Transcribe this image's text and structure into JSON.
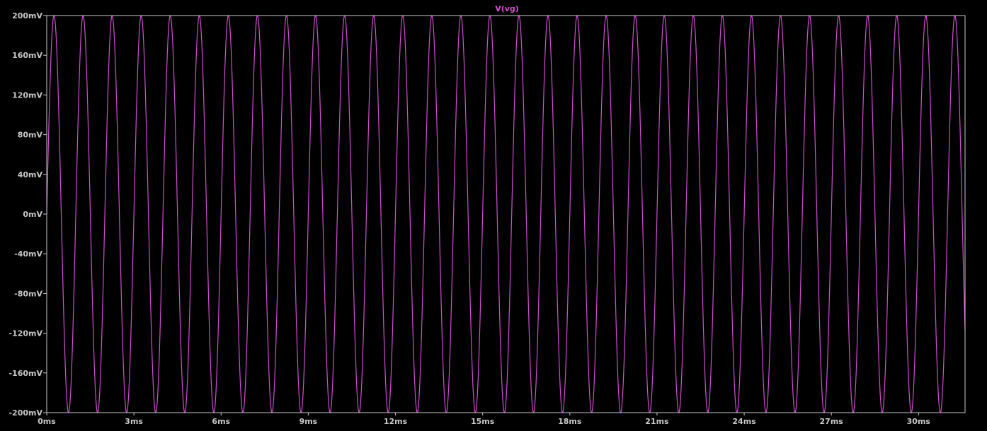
{
  "window": {
    "background": "#000000",
    "frame_color": "#c8c8c8",
    "label_color": "#c8c8c8"
  },
  "chart_data": {
    "type": "line",
    "title": "V(vg)",
    "xlabel": "",
    "ylabel": "",
    "x_unit": "ms",
    "y_unit": "mV",
    "xlim": [
      0,
      31.6
    ],
    "ylim": [
      -200,
      200
    ],
    "x_ticks": [
      0,
      3,
      6,
      9,
      12,
      15,
      18,
      21,
      24,
      27,
      30
    ],
    "x_tick_labels": [
      "0ms",
      "3ms",
      "6ms",
      "9ms",
      "12ms",
      "15ms",
      "18ms",
      "21ms",
      "24ms",
      "27ms",
      "30ms"
    ],
    "y_ticks": [
      200,
      160,
      120,
      80,
      40,
      0,
      -40,
      -80,
      -120,
      -160,
      -200
    ],
    "y_tick_labels": [
      "200mV",
      "160mV",
      "120mV",
      "80mV",
      "40mV",
      "0mV",
      "-40mV",
      "-80mV",
      "-120mV",
      "-160mV",
      "-200mV"
    ],
    "grid": false,
    "series": [
      {
        "name": "V(vg)",
        "color": "#d24fd2",
        "waveform": "sine",
        "amplitude_mV": 200,
        "offset_mV": 0,
        "frequency_Hz": 1000,
        "t_start_ms": 0,
        "t_end_ms": 31.6
      }
    ]
  }
}
